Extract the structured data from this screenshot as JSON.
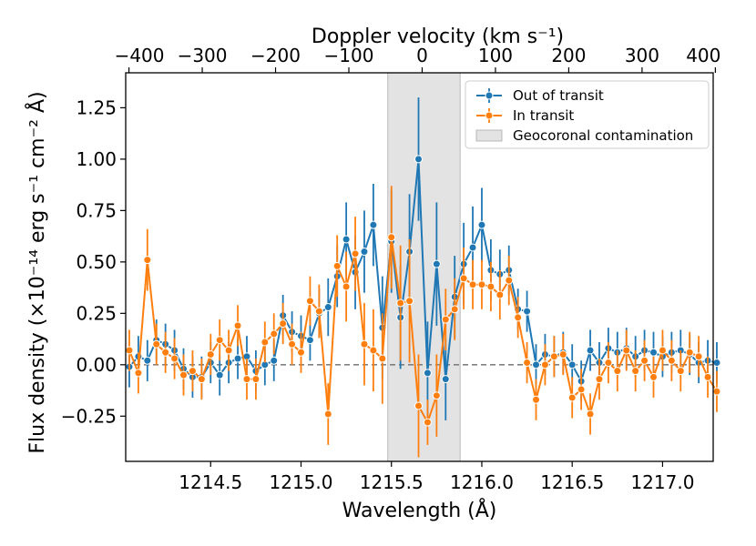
{
  "chart_data": {
    "type": "line",
    "xlabel": "Wavelength (Å)",
    "ylabel": "Flux density (×10⁻¹⁴ erg s⁻¹ cm⁻² Å)",
    "top_xlabel": "Doppler velocity (km s⁻¹)",
    "xlim": [
      1214.03,
      1217.28
    ],
    "ylim": [
      -0.47,
      1.42
    ],
    "x_ticks": [
      1214.5,
      1215.0,
      1215.5,
      1216.0,
      1216.5,
      1217.0
    ],
    "x_tick_labels": [
      "1214.5",
      "1215.0",
      "1215.5",
      "1216.0",
      "1216.5",
      "1217.0"
    ],
    "y_ticks": [
      -0.25,
      0.0,
      0.25,
      0.5,
      0.75,
      1.0,
      1.25
    ],
    "y_tick_labels": [
      "−0.25",
      "0.00",
      "0.25",
      "0.50",
      "0.75",
      "1.00",
      "1.25"
    ],
    "top_ticks": [
      -400,
      -300,
      -200,
      -100,
      0,
      100,
      200,
      300,
      400
    ],
    "top_tick_labels": [
      "−400",
      "−300",
      "−200",
      "−100",
      "0",
      "100",
      "200",
      "300",
      "400"
    ],
    "velocity_reference_wavelength": 1215.67,
    "shaded_region": {
      "label": "Geocoronal contamination",
      "x_range": [
        1215.48,
        1215.88
      ],
      "color": "#e3e3e3"
    },
    "zero_line": {
      "y": 0.0,
      "style": "dashed",
      "color": "#808080"
    },
    "legend": {
      "position": "top-right",
      "entries": [
        "Out of transit",
        "In transit",
        "Geocoronal contamination"
      ]
    },
    "x": [
      1214.05,
      1214.1,
      1214.15,
      1214.2,
      1214.25,
      1214.3,
      1214.35,
      1214.4,
      1214.45,
      1214.5,
      1214.55,
      1214.6,
      1214.65,
      1214.7,
      1214.75,
      1214.8,
      1214.85,
      1214.9,
      1214.95,
      1215.0,
      1215.05,
      1215.1,
      1215.15,
      1215.2,
      1215.25,
      1215.3,
      1215.35,
      1215.4,
      1215.45,
      1215.5,
      1215.55,
      1215.6,
      1215.65,
      1215.7,
      1215.75,
      1215.8,
      1215.85,
      1215.9,
      1215.95,
      1216.0,
      1216.05,
      1216.1,
      1216.15,
      1216.2,
      1216.25,
      1216.3,
      1216.35,
      1216.4,
      1216.45,
      1216.5,
      1216.55,
      1216.6,
      1216.65,
      1216.7,
      1216.75,
      1216.8,
      1216.85,
      1216.9,
      1216.95,
      1217.0,
      1217.05,
      1217.1,
      1217.15,
      1217.2,
      1217.25,
      1217.3
    ],
    "series": [
      {
        "name": "Out of transit",
        "color": "#1f77b4",
        "values": [
          -0.01,
          0.04,
          0.02,
          0.12,
          0.1,
          0.07,
          -0.02,
          -0.06,
          -0.06,
          0.01,
          -0.05,
          0.01,
          0.03,
          0.04,
          -0.03,
          0.0,
          0.02,
          0.24,
          0.16,
          0.14,
          0.12,
          0.25,
          0.28,
          0.43,
          0.61,
          0.45,
          0.55,
          0.68,
          0.18,
          0.6,
          0.23,
          0.55,
          1.0,
          -0.04,
          0.49,
          -0.07,
          0.33,
          0.49,
          0.57,
          0.68,
          0.46,
          0.44,
          0.46,
          0.27,
          0.26,
          -0.0,
          0.05,
          0.04,
          0.06,
          0.0,
          -0.08,
          0.07,
          0.01,
          0.08,
          0.06,
          0.08,
          0.04,
          0.07,
          0.06,
          0.04,
          0.06,
          0.07,
          0.05,
          0.01,
          0.02,
          0.01
        ],
        "errors": [
          0.1,
          0.1,
          0.1,
          0.1,
          0.1,
          0.1,
          0.1,
          0.1,
          0.1,
          0.1,
          0.1,
          0.1,
          0.1,
          0.1,
          0.1,
          0.1,
          0.1,
          0.1,
          0.1,
          0.1,
          0.1,
          0.12,
          0.14,
          0.15,
          0.18,
          0.18,
          0.2,
          0.2,
          0.25,
          0.25,
          0.25,
          0.28,
          0.3,
          0.25,
          0.3,
          0.2,
          0.2,
          0.2,
          0.2,
          0.18,
          0.15,
          0.12,
          0.12,
          0.1,
          0.1,
          0.1,
          0.1,
          0.1,
          0.1,
          0.1,
          0.1,
          0.1,
          0.1,
          0.1,
          0.1,
          0.1,
          0.1,
          0.1,
          0.1,
          0.1,
          0.1,
          0.1,
          0.1,
          0.1,
          0.1,
          0.1
        ]
      },
      {
        "name": "In transit",
        "color": "#ff7f0e",
        "values": [
          0.07,
          -0.04,
          0.51,
          0.1,
          0.06,
          0.03,
          -0.05,
          -0.03,
          -0.07,
          0.05,
          0.12,
          0.07,
          0.19,
          -0.07,
          -0.07,
          0.11,
          0.15,
          0.2,
          0.1,
          0.06,
          0.31,
          0.26,
          -0.24,
          0.48,
          0.38,
          0.54,
          0.1,
          0.07,
          0.03,
          0.62,
          0.3,
          0.31,
          -0.2,
          -0.28,
          -0.15,
          0.22,
          0.27,
          0.42,
          0.39,
          0.39,
          0.38,
          0.34,
          0.41,
          0.23,
          0.01,
          -0.17,
          0.0,
          0.04,
          0.05,
          -0.16,
          -0.12,
          -0.24,
          -0.07,
          0.01,
          -0.03,
          0.07,
          -0.03,
          0.02,
          -0.06,
          0.07,
          0.02,
          -0.03,
          0.06,
          0.04,
          -0.06,
          -0.13
        ],
        "errors": [
          0.1,
          0.1,
          0.15,
          0.1,
          0.1,
          0.1,
          0.1,
          0.1,
          0.1,
          0.1,
          0.1,
          0.1,
          0.1,
          0.1,
          0.1,
          0.1,
          0.1,
          0.1,
          0.1,
          0.1,
          0.12,
          0.13,
          0.15,
          0.15,
          0.17,
          0.18,
          0.2,
          0.2,
          0.22,
          0.25,
          0.28,
          0.3,
          0.25,
          0.11,
          0.2,
          0.15,
          0.15,
          0.15,
          0.12,
          0.12,
          0.12,
          0.12,
          0.12,
          0.1,
          0.1,
          0.1,
          0.1,
          0.1,
          0.1,
          0.1,
          0.1,
          0.1,
          0.1,
          0.1,
          0.1,
          0.1,
          0.1,
          0.1,
          0.1,
          0.1,
          0.1,
          0.1,
          0.1,
          0.1,
          0.1,
          0.1
        ]
      }
    ]
  }
}
